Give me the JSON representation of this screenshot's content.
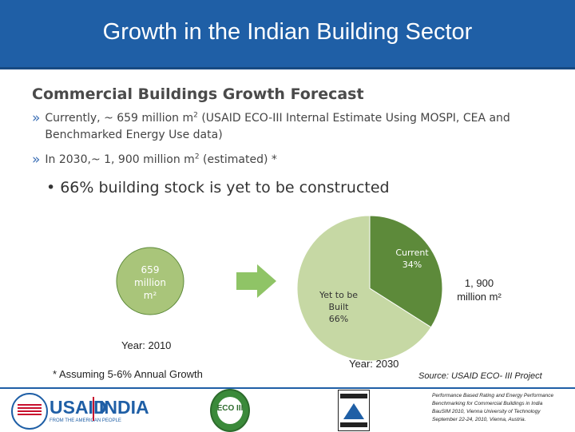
{
  "header": {
    "title": "Growth in the Indian Building Sector"
  },
  "section": {
    "subtitle": "Commercial Buildings Growth Forecast"
  },
  "bullets": {
    "chevron": "»",
    "b1_text": "Currently, ~ 659 million m",
    "b1_sup": "2",
    "b1_rest": " (USAID ECO-III Internal Estimate Using MOSPI, CEA and Benchmarked Energy Use data)",
    "b2_text": "In 2030,~ 1, 900 million m",
    "b2_sup": "2",
    "b2_rest": " (estimated) *",
    "sub_dot": "•",
    "sub_text": "66%  building stock is yet to be constructed"
  },
  "chart_data": [
    {
      "type": "pie",
      "title": "",
      "year_label": "Year: 2010",
      "circle_labels": [
        "659",
        "million",
        "m²"
      ],
      "categories": [
        "Current"
      ],
      "values": [
        659
      ],
      "colors": {
        "fill": "#a9c57a",
        "stroke": "#5d8a3a"
      }
    },
    {
      "type": "pie",
      "title": "",
      "year_label": "Year: 2030",
      "total_labels": [
        "1, 900",
        "million m²"
      ],
      "categories": [
        "Current",
        "Yet to be Built"
      ],
      "slice_labels": [
        [
          "Current",
          "34%"
        ],
        [
          "Yet to be",
          "Built",
          "66%"
        ]
      ],
      "values": [
        34,
        66
      ],
      "colors": {
        "current": "#5d8a3a",
        "yet_to_build": "#c6d8a4"
      }
    }
  ],
  "notes": {
    "assumption": "* Assuming 5-6% Annual Growth",
    "source": "Source: USAID ECO- III Project"
  },
  "arrow": {
    "color": "#8fc466"
  },
  "footer": {
    "usaid_label": "USAID",
    "usaid_sub": "FROM THE AMERICAN PEOPLE",
    "india_label": "INDIA",
    "eco_label": "ECO III",
    "reference_lines": [
      "Performance Based Rating and Energy Performance",
      "Benchmarking for Commercial Buildings in India",
      "BauSIM 2010, Vienna University of Technology",
      "September 22-24, 2010, Vienna, Austria."
    ]
  },
  "colors": {
    "title_bar": "#1f5fa6",
    "chevron": "#3a6eb5",
    "text": "#444444"
  }
}
